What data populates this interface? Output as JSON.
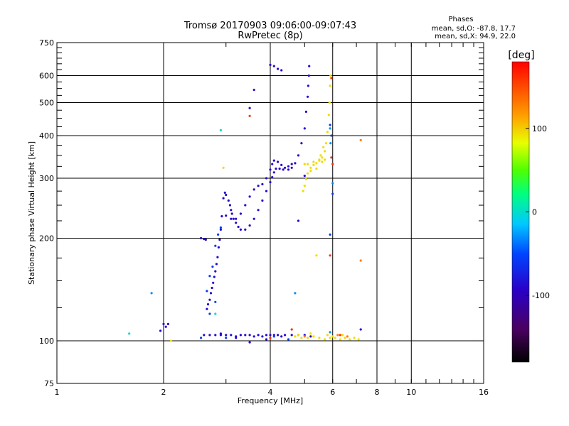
{
  "chart_data": {
    "type": "scatter",
    "title": "Tromsø 20170903 09:06:00-09:07:43",
    "subtitle": "RwPretec (8p)",
    "xlabel": "Frequency [MHz]",
    "ylabel": "Stationary phase Virtual Height [km]",
    "x_scale": "log",
    "y_scale": "log",
    "xlim": [
      1,
      16
    ],
    "ylim": [
      75,
      750
    ],
    "x_ticks": [
      1,
      2,
      4,
      6,
      8,
      10,
      16
    ],
    "x_tick_labels": [
      "1",
      "2",
      "4",
      "6",
      "8",
      "10",
      "16"
    ],
    "y_ticks": [
      75,
      100,
      200,
      300,
      400,
      500,
      600,
      750
    ],
    "y_tick_labels": [
      "75",
      "100",
      "200",
      "300",
      "400",
      "500",
      "600",
      "750"
    ],
    "grid": true,
    "phases_box": {
      "title": "Phases",
      "line_o": "mean, sd,O: -87.8, 17.7",
      "line_x": "mean, sd,X:  94.9, 22.0"
    },
    "colorbar": {
      "label": "[deg]",
      "range": [
        -180,
        180
      ],
      "ticks": [
        -100,
        0,
        100
      ],
      "tick_labels": [
        "-100",
        "0",
        "100"
      ]
    },
    "series": [
      {
        "phase_deg": -88,
        "points": [
          [
            2.0,
            112
          ],
          [
            2.03,
            110
          ],
          [
            2.06,
            112
          ],
          [
            1.96,
            107
          ],
          [
            2.55,
            200
          ],
          [
            2.6,
            199
          ],
          [
            2.63,
            198
          ],
          [
            2.65,
            124
          ],
          [
            2.67,
            128
          ],
          [
            2.7,
            132
          ],
          [
            2.72,
            138
          ],
          [
            2.74,
            143
          ],
          [
            2.76,
            148
          ],
          [
            2.78,
            154
          ],
          [
            2.8,
            160
          ],
          [
            2.82,
            168
          ],
          [
            2.84,
            176
          ],
          [
            2.86,
            188
          ],
          [
            2.88,
            198
          ],
          [
            2.9,
            212
          ],
          [
            2.92,
            232
          ],
          [
            2.95,
            262
          ],
          [
            2.98,
            272
          ],
          [
            3.0,
            268
          ],
          [
            3.05,
            258
          ],
          [
            3.08,
            250
          ],
          [
            3.1,
            242
          ],
          [
            3.12,
            236
          ],
          [
            3.15,
            228
          ],
          [
            3.2,
            222
          ],
          [
            3.25,
            216
          ],
          [
            3.3,
            212
          ],
          [
            3.4,
            212
          ],
          [
            3.5,
            218
          ],
          [
            3.6,
            228
          ],
          [
            3.7,
            242
          ],
          [
            3.8,
            258
          ],
          [
            3.9,
            275
          ],
          [
            4.0,
            292
          ],
          [
            4.05,
            302
          ],
          [
            4.1,
            312
          ],
          [
            4.15,
            320
          ],
          [
            4.25,
            320
          ],
          [
            4.35,
            318
          ],
          [
            4.5,
            318
          ],
          [
            4.6,
            322
          ],
          [
            4.7,
            332
          ],
          [
            4.8,
            350
          ],
          [
            4.9,
            380
          ],
          [
            5.0,
            420
          ],
          [
            5.05,
            470
          ],
          [
            5.1,
            520
          ],
          [
            5.12,
            560
          ],
          [
            5.14,
            600
          ],
          [
            5.15,
            640
          ],
          [
            3.0,
            233
          ],
          [
            3.1,
            228
          ],
          [
            3.2,
            228
          ],
          [
            3.3,
            236
          ],
          [
            3.4,
            250
          ],
          [
            3.5,
            265
          ],
          [
            3.6,
            278
          ],
          [
            3.7,
            285
          ],
          [
            3.8,
            288
          ],
          [
            3.9,
            300
          ],
          [
            4.0,
            318
          ],
          [
            4.05,
            330
          ],
          [
            4.1,
            338
          ],
          [
            4.2,
            335
          ],
          [
            4.3,
            328
          ],
          [
            4.4,
            322
          ],
          [
            4.5,
            325
          ],
          [
            4.6,
            330
          ],
          [
            4.0,
            645
          ],
          [
            4.1,
            640
          ],
          [
            4.2,
            628
          ],
          [
            4.3,
            622
          ],
          [
            3.6,
            545
          ],
          [
            3.5,
            482
          ],
          [
            5.0,
            305
          ],
          [
            4.8,
            225
          ],
          [
            2.6,
            104
          ],
          [
            2.7,
            104
          ],
          [
            2.8,
            104
          ],
          [
            2.9,
            104
          ],
          [
            3.0,
            104
          ],
          [
            3.1,
            104
          ],
          [
            3.2,
            103
          ],
          [
            3.3,
            104
          ],
          [
            3.4,
            104
          ],
          [
            3.5,
            104
          ],
          [
            3.6,
            103
          ],
          [
            3.7,
            104
          ],
          [
            3.8,
            103
          ],
          [
            3.9,
            104
          ],
          [
            4.0,
            104
          ],
          [
            4.1,
            104
          ],
          [
            4.2,
            104
          ],
          [
            4.4,
            104
          ],
          [
            4.6,
            104
          ],
          [
            4.8,
            104
          ],
          [
            5.0,
            104
          ],
          [
            5.2,
            103
          ],
          [
            3.5,
            99
          ],
          [
            3.9,
            101
          ],
          [
            7.2,
            108
          ],
          [
            2.9,
            105
          ],
          [
            3.2,
            102
          ],
          [
            4.3,
            103
          ]
        ]
      },
      {
        "phase_deg": -55,
        "points": [
          [
            2.7,
            155
          ],
          [
            2.75,
            165
          ],
          [
            2.8,
            190
          ],
          [
            2.85,
            205
          ],
          [
            2.9,
            215
          ],
          [
            2.65,
            140
          ],
          [
            2.7,
            120
          ],
          [
            2.8,
            130
          ],
          [
            4.1,
            103
          ],
          [
            5.9,
            430
          ],
          [
            5.95,
            400
          ],
          [
            6.0,
            270
          ],
          [
            5.9,
            205
          ],
          [
            2.55,
            102
          ],
          [
            3.0,
            102
          ],
          [
            4.5,
            101
          ]
        ]
      },
      {
        "phase_deg": -30,
        "points": [
          [
            4.7,
            138
          ],
          [
            5.9,
            420
          ],
          [
            5.92,
            380
          ],
          [
            6.0,
            290
          ],
          [
            1.85,
            138
          ],
          [
            5.9,
            106
          ]
        ]
      },
      {
        "phase_deg": 0,
        "points": [
          [
            1.6,
            105
          ],
          [
            2.8,
            120
          ],
          [
            2.9,
            415
          ]
        ]
      },
      {
        "phase_deg": 95,
        "points": [
          [
            4.95,
            275
          ],
          [
            5.0,
            285
          ],
          [
            5.05,
            298
          ],
          [
            5.1,
            310
          ],
          [
            5.2,
            322
          ],
          [
            5.3,
            328
          ],
          [
            5.4,
            332
          ],
          [
            5.5,
            338
          ],
          [
            5.6,
            345
          ],
          [
            5.7,
            360
          ],
          [
            5.75,
            380
          ],
          [
            5.8,
            410
          ],
          [
            5.85,
            460
          ],
          [
            5.88,
            500
          ],
          [
            5.9,
            560
          ],
          [
            5.92,
            600
          ],
          [
            5.1,
            330
          ],
          [
            5.3,
            335
          ],
          [
            5.5,
            340
          ],
          [
            5.6,
            335
          ],
          [
            5.7,
            340
          ],
          [
            5.0,
            330
          ],
          [
            5.2,
            315
          ],
          [
            5.4,
            320
          ],
          [
            5.55,
            350
          ],
          [
            5.65,
            370
          ],
          [
            4.7,
            103
          ],
          [
            4.9,
            102
          ],
          [
            5.1,
            102
          ],
          [
            5.3,
            103
          ],
          [
            5.5,
            102
          ],
          [
            5.7,
            101
          ],
          [
            5.9,
            102
          ],
          [
            6.1,
            102
          ],
          [
            6.3,
            101
          ],
          [
            6.5,
            102
          ],
          [
            6.7,
            101
          ],
          [
            6.9,
            102
          ],
          [
            7.1,
            101
          ],
          [
            4.8,
            104
          ],
          [
            5.2,
            105
          ],
          [
            5.8,
            104
          ],
          [
            6.0,
            103
          ],
          [
            6.4,
            104
          ],
          [
            5.4,
            178
          ],
          [
            2.1,
            100
          ],
          [
            2.95,
            322
          ]
        ]
      },
      {
        "phase_deg": 130,
        "points": [
          [
            7.2,
            388
          ],
          [
            7.2,
            172
          ],
          [
            5.0,
            103
          ],
          [
            6.2,
            104
          ],
          [
            6.6,
            103
          ]
        ]
      },
      {
        "phase_deg": 160,
        "points": [
          [
            5.95,
            345
          ],
          [
            6.0,
            330
          ],
          [
            5.9,
            178
          ],
          [
            5.95,
            590
          ],
          [
            3.5,
            457
          ],
          [
            6.3,
            104
          ],
          [
            4.6,
            108
          ],
          [
            4.0,
            102
          ]
        ]
      }
    ]
  }
}
